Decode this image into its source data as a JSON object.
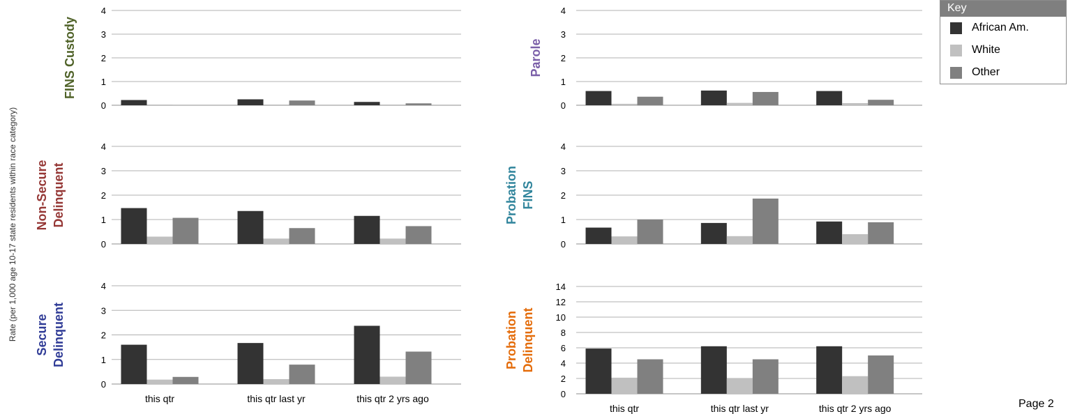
{
  "y_axis_label": "Rate (per 1,000 age 10-17 state residents within race category)",
  "legend": {
    "title": "Key",
    "items": [
      {
        "label": "African Am.",
        "color": "#333333"
      },
      {
        "label": "White",
        "color": "#c0c0c0"
      },
      {
        "label": "Other",
        "color": "#808080"
      }
    ]
  },
  "page_label": "Page 2",
  "chart_data": [
    {
      "type": "bar",
      "title_lines": [
        "FINS Custody"
      ],
      "title_color": "#4f6228",
      "categories": [
        "this qtr",
        "this qtr last yr",
        "this qtr 2 yrs ago"
      ],
      "show_categories": false,
      "yticks": [
        0,
        1,
        2,
        3,
        4
      ],
      "ylim": [
        0,
        4
      ],
      "series": [
        {
          "name": "African Am.",
          "values": [
            0.22,
            0.25,
            0.14
          ]
        },
        {
          "name": "White",
          "values": [
            0.03,
            0.03,
            0.03
          ]
        },
        {
          "name": "Other",
          "values": [
            0.0,
            0.2,
            0.08
          ]
        }
      ]
    },
    {
      "type": "bar",
      "title_lines": [
        "Non-Secure",
        "Delinquent"
      ],
      "title_color": "#953735",
      "categories": [
        "this qtr",
        "this qtr last yr",
        "this qtr 2 yrs ago"
      ],
      "show_categories": false,
      "yticks": [
        0,
        1,
        2,
        3,
        4
      ],
      "ylim": [
        0,
        4
      ],
      "series": [
        {
          "name": "African Am.",
          "values": [
            1.47,
            1.35,
            1.15
          ]
        },
        {
          "name": "White",
          "values": [
            0.3,
            0.22,
            0.22
          ]
        },
        {
          "name": "Other",
          "values": [
            1.07,
            0.65,
            0.73
          ]
        }
      ]
    },
    {
      "type": "bar",
      "title_lines": [
        "Secure",
        "Delinquent"
      ],
      "title_color": "#2f3b96",
      "categories": [
        "this qtr",
        "this qtr last yr",
        "this qtr 2 yrs ago"
      ],
      "show_categories": true,
      "yticks": [
        0,
        1,
        2,
        3,
        4
      ],
      "ylim": [
        0,
        4
      ],
      "series": [
        {
          "name": "African Am.",
          "values": [
            1.6,
            1.67,
            2.37
          ]
        },
        {
          "name": "White",
          "values": [
            0.18,
            0.2,
            0.3
          ]
        },
        {
          "name": "Other",
          "values": [
            0.29,
            0.79,
            1.32
          ]
        }
      ]
    },
    {
      "type": "bar",
      "title_lines": [
        "Parole"
      ],
      "title_color": "#7a5ea8",
      "categories": [
        "this qtr",
        "this qtr last yr",
        "this qtr 2 yrs ago"
      ],
      "show_categories": false,
      "yticks": [
        0,
        1,
        2,
        3,
        4
      ],
      "ylim": [
        0,
        4
      ],
      "series": [
        {
          "name": "African Am.",
          "values": [
            0.6,
            0.62,
            0.6
          ]
        },
        {
          "name": "White",
          "values": [
            0.06,
            0.1,
            0.09
          ]
        },
        {
          "name": "Other",
          "values": [
            0.36,
            0.56,
            0.23
          ]
        }
      ]
    },
    {
      "type": "bar",
      "title_lines": [
        "Probation",
        "FINS"
      ],
      "title_color": "#31859c",
      "categories": [
        "this qtr",
        "this qtr last yr",
        "this qtr 2 yrs ago"
      ],
      "show_categories": false,
      "yticks": [
        0,
        1,
        2,
        3,
        4
      ],
      "ylim": [
        0,
        4
      ],
      "series": [
        {
          "name": "African Am.",
          "values": [
            0.67,
            0.86,
            0.92
          ]
        },
        {
          "name": "White",
          "values": [
            0.31,
            0.32,
            0.4
          ]
        },
        {
          "name": "Other",
          "values": [
            1.0,
            1.86,
            0.89
          ]
        }
      ]
    },
    {
      "type": "bar",
      "title_lines": [
        "Probation",
        "Delinquent"
      ],
      "title_color": "#e46c0a",
      "categories": [
        "this qtr",
        "this qtr last yr",
        "this qtr 2 yrs ago"
      ],
      "show_categories": true,
      "yticks": [
        0,
        2,
        4,
        6,
        8,
        10,
        12,
        14
      ],
      "ylim": [
        0,
        14
      ],
      "series": [
        {
          "name": "African Am.",
          "values": [
            5.9,
            6.2,
            6.2
          ]
        },
        {
          "name": "White",
          "values": [
            2.1,
            2.0,
            2.3
          ]
        },
        {
          "name": "Other",
          "values": [
            4.5,
            4.5,
            5.0
          ]
        }
      ]
    }
  ]
}
